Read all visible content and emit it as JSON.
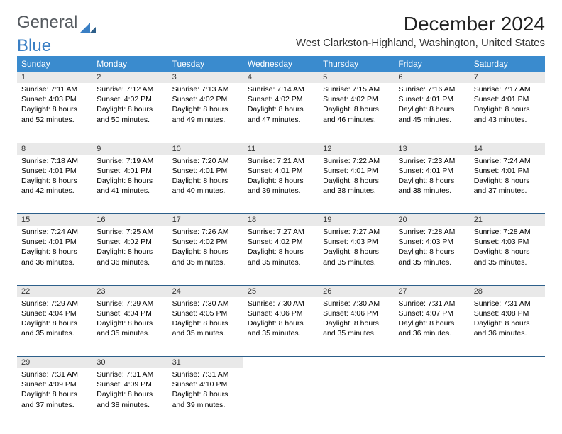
{
  "logo": {
    "text1": "General",
    "text2": "Blue"
  },
  "title": "December 2024",
  "subtitle": "West Clarkston-Highland, Washington, United States",
  "colors": {
    "header_bg": "#3a8bce",
    "header_text": "#ffffff",
    "daynum_bg": "#e9e9e9",
    "row_divider": "#2d5f8a",
    "logo_gray": "#555a5f",
    "logo_blue": "#3a7fc4",
    "background": "#ffffff"
  },
  "typography": {
    "title_fontsize": 28,
    "subtitle_fontsize": 15,
    "dayheader_fontsize": 12,
    "daynum_fontsize": 11,
    "cell_fontsize": 10.5
  },
  "day_headers": [
    "Sunday",
    "Monday",
    "Tuesday",
    "Wednesday",
    "Thursday",
    "Friday",
    "Saturday"
  ],
  "weeks": [
    [
      {
        "n": "1",
        "sr": "7:11 AM",
        "ss": "4:03 PM",
        "dl": "8 hours and 52 minutes."
      },
      {
        "n": "2",
        "sr": "7:12 AM",
        "ss": "4:02 PM",
        "dl": "8 hours and 50 minutes."
      },
      {
        "n": "3",
        "sr": "7:13 AM",
        "ss": "4:02 PM",
        "dl": "8 hours and 49 minutes."
      },
      {
        "n": "4",
        "sr": "7:14 AM",
        "ss": "4:02 PM",
        "dl": "8 hours and 47 minutes."
      },
      {
        "n": "5",
        "sr": "7:15 AM",
        "ss": "4:02 PM",
        "dl": "8 hours and 46 minutes."
      },
      {
        "n": "6",
        "sr": "7:16 AM",
        "ss": "4:01 PM",
        "dl": "8 hours and 45 minutes."
      },
      {
        "n": "7",
        "sr": "7:17 AM",
        "ss": "4:01 PM",
        "dl": "8 hours and 43 minutes."
      }
    ],
    [
      {
        "n": "8",
        "sr": "7:18 AM",
        "ss": "4:01 PM",
        "dl": "8 hours and 42 minutes."
      },
      {
        "n": "9",
        "sr": "7:19 AM",
        "ss": "4:01 PM",
        "dl": "8 hours and 41 minutes."
      },
      {
        "n": "10",
        "sr": "7:20 AM",
        "ss": "4:01 PM",
        "dl": "8 hours and 40 minutes."
      },
      {
        "n": "11",
        "sr": "7:21 AM",
        "ss": "4:01 PM",
        "dl": "8 hours and 39 minutes."
      },
      {
        "n": "12",
        "sr": "7:22 AM",
        "ss": "4:01 PM",
        "dl": "8 hours and 38 minutes."
      },
      {
        "n": "13",
        "sr": "7:23 AM",
        "ss": "4:01 PM",
        "dl": "8 hours and 38 minutes."
      },
      {
        "n": "14",
        "sr": "7:24 AM",
        "ss": "4:01 PM",
        "dl": "8 hours and 37 minutes."
      }
    ],
    [
      {
        "n": "15",
        "sr": "7:24 AM",
        "ss": "4:01 PM",
        "dl": "8 hours and 36 minutes."
      },
      {
        "n": "16",
        "sr": "7:25 AM",
        "ss": "4:02 PM",
        "dl": "8 hours and 36 minutes."
      },
      {
        "n": "17",
        "sr": "7:26 AM",
        "ss": "4:02 PM",
        "dl": "8 hours and 35 minutes."
      },
      {
        "n": "18",
        "sr": "7:27 AM",
        "ss": "4:02 PM",
        "dl": "8 hours and 35 minutes."
      },
      {
        "n": "19",
        "sr": "7:27 AM",
        "ss": "4:03 PM",
        "dl": "8 hours and 35 minutes."
      },
      {
        "n": "20",
        "sr": "7:28 AM",
        "ss": "4:03 PM",
        "dl": "8 hours and 35 minutes."
      },
      {
        "n": "21",
        "sr": "7:28 AM",
        "ss": "4:03 PM",
        "dl": "8 hours and 35 minutes."
      }
    ],
    [
      {
        "n": "22",
        "sr": "7:29 AM",
        "ss": "4:04 PM",
        "dl": "8 hours and 35 minutes."
      },
      {
        "n": "23",
        "sr": "7:29 AM",
        "ss": "4:04 PM",
        "dl": "8 hours and 35 minutes."
      },
      {
        "n": "24",
        "sr": "7:30 AM",
        "ss": "4:05 PM",
        "dl": "8 hours and 35 minutes."
      },
      {
        "n": "25",
        "sr": "7:30 AM",
        "ss": "4:06 PM",
        "dl": "8 hours and 35 minutes."
      },
      {
        "n": "26",
        "sr": "7:30 AM",
        "ss": "4:06 PM",
        "dl": "8 hours and 35 minutes."
      },
      {
        "n": "27",
        "sr": "7:31 AM",
        "ss": "4:07 PM",
        "dl": "8 hours and 36 minutes."
      },
      {
        "n": "28",
        "sr": "7:31 AM",
        "ss": "4:08 PM",
        "dl": "8 hours and 36 minutes."
      }
    ],
    [
      {
        "n": "29",
        "sr": "7:31 AM",
        "ss": "4:09 PM",
        "dl": "8 hours and 37 minutes."
      },
      {
        "n": "30",
        "sr": "7:31 AM",
        "ss": "4:09 PM",
        "dl": "8 hours and 38 minutes."
      },
      {
        "n": "31",
        "sr": "7:31 AM",
        "ss": "4:10 PM",
        "dl": "8 hours and 39 minutes."
      },
      null,
      null,
      null,
      null
    ]
  ],
  "labels": {
    "sunrise": "Sunrise:",
    "sunset": "Sunset:",
    "daylight": "Daylight:"
  }
}
